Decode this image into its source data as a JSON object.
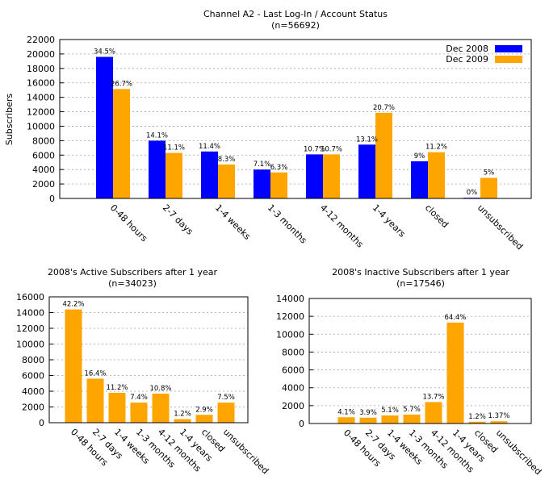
{
  "colors": {
    "dec2008": "#0000ff",
    "dec2009": "#ffa500"
  },
  "chart_data": [
    {
      "type": "bar",
      "title": "Channel A2 - Last Log-In / Account Status",
      "subtitle": "(n=56692)",
      "ylabel": "Subscribers",
      "xlabel": "",
      "ylim": [
        0,
        22000
      ],
      "yticks": [
        0,
        2000,
        4000,
        6000,
        8000,
        10000,
        12000,
        14000,
        16000,
        18000,
        20000,
        22000
      ],
      "grid": true,
      "legend": "top-right",
      "categories": [
        "0-48 hours",
        "2-7 days",
        "1-4 weeks",
        "1-3 months",
        "4-12 months",
        "1-4 years",
        "closed",
        "unsubscribed"
      ],
      "series": [
        {
          "name": "Dec 2008",
          "color": "#0000ff",
          "values": [
            19600,
            8000,
            6500,
            4000,
            6100,
            7450,
            5150,
            100
          ],
          "labels": [
            "34.5%",
            "14.1%",
            "11.4%",
            "7.1%",
            "10.7%",
            "13.1%",
            "9%",
            "0%"
          ]
        },
        {
          "name": "Dec 2009",
          "color": "#ffa500",
          "values": [
            15150,
            6300,
            4700,
            3600,
            6100,
            11850,
            6400,
            2850
          ],
          "labels": [
            "26.7%",
            "11.1%",
            "8.3%",
            "6.3%",
            "10.7%",
            "20.7%",
            "11.2%",
            "5%"
          ]
        }
      ]
    },
    {
      "type": "bar",
      "title": "2008's Active Subscribers after 1 year",
      "subtitle": "(n=34023)",
      "xlabel": "",
      "ylabel": "",
      "ylim": [
        0,
        16000
      ],
      "yticks": [
        0,
        2000,
        4000,
        6000,
        8000,
        10000,
        12000,
        14000,
        16000
      ],
      "grid": true,
      "categories": [
        "0-48 hours",
        "2-7 days",
        "1-4 weeks",
        "1-3 months",
        "4-12 months",
        "1-4 years",
        "closed",
        "unsubscribed"
      ],
      "series": [
        {
          "color": "#ffa500",
          "values": [
            14400,
            5600,
            3800,
            2550,
            3700,
            450,
            1000,
            2550
          ],
          "labels": [
            "42.2%",
            "16.4%",
            "11.2%",
            "7.4%",
            "10.8%",
            "1.2%",
            "2.9%",
            "7.5%"
          ]
        }
      ]
    },
    {
      "type": "bar",
      "title": "2008's Inactive Subscribers after 1 year",
      "subtitle": "(n=17546)",
      "xlabel": "",
      "ylabel": "",
      "ylim": [
        0,
        14000
      ],
      "yticks": [
        0,
        2000,
        4000,
        6000,
        8000,
        10000,
        12000,
        14000
      ],
      "grid": true,
      "categories": [
        "0-48 hours",
        "2-7 days",
        "1-4 weeks",
        "1-3 months",
        "4-12 months",
        "1-4 years",
        "closed",
        "unsubscribed"
      ],
      "series": [
        {
          "color": "#ffa500",
          "values": [
            700,
            650,
            900,
            1000,
            2400,
            11300,
            200,
            250
          ],
          "labels": [
            "4.1%",
            "3.9%",
            "5.1%",
            "5.7%",
            "13.7%",
            "64.4%",
            "1.2%",
            "1.37%"
          ]
        }
      ]
    }
  ]
}
